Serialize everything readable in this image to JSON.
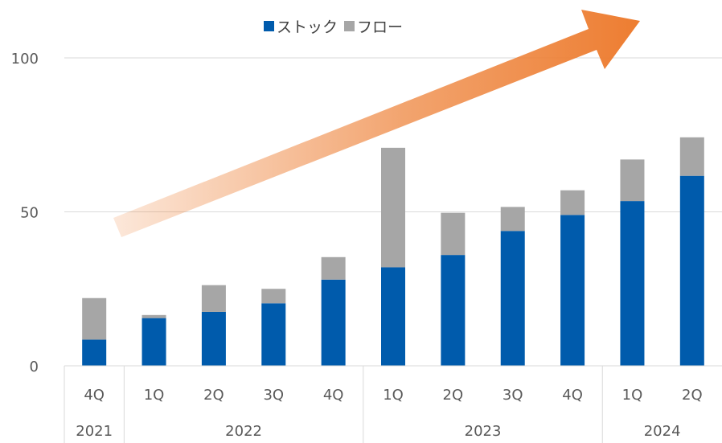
{
  "chart_data": {
    "type": "bar",
    "stacked": true,
    "categories": [
      "4Q",
      "1Q",
      "2Q",
      "3Q",
      "4Q",
      "1Q",
      "2Q",
      "3Q",
      "4Q",
      "1Q",
      "2Q"
    ],
    "years": [
      {
        "label": "2021",
        "count": 1
      },
      {
        "label": "2022",
        "count": 4
      },
      {
        "label": "2023",
        "count": 4
      },
      {
        "label": "2024",
        "count": 2
      }
    ],
    "series": [
      {
        "name": "ストック",
        "color": "#005BAC",
        "values": [
          8.5,
          15.5,
          17.5,
          20.3,
          28.0,
          32.0,
          36.0,
          43.8,
          49.0,
          53.5,
          61.7
        ]
      },
      {
        "name": "フロー",
        "color": "#A6A6A6",
        "values": [
          13.5,
          1.0,
          8.7,
          4.7,
          7.3,
          38.8,
          13.7,
          7.8,
          8.0,
          13.5,
          12.5
        ]
      }
    ],
    "y_ticks": [
      "0",
      "50",
      "100"
    ],
    "ylim": [
      0,
      100
    ],
    "grid": true,
    "legend_position": "top-center",
    "annotation": {
      "type": "arrow",
      "direction": "up-right",
      "color": "#ED7D31"
    }
  }
}
